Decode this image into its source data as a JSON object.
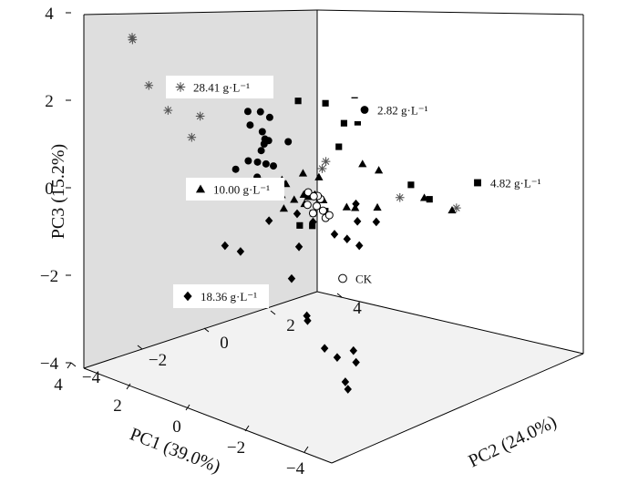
{
  "chart_data": {
    "type": "scatter",
    "projection": "3d",
    "xlabel": "PC1 (39.0%)",
    "ylabel": "PC2 (24.0%)",
    "zlabel": "PC3 (15.2%)",
    "xlim": [
      -4,
      4
    ],
    "ylim": [
      -4,
      4
    ],
    "zlim": [
      -4,
      4
    ],
    "x_ticks": [
      "−4",
      "−2",
      "0",
      "2",
      "4"
    ],
    "y_ticks": [
      "−4",
      "−2",
      "0",
      "2",
      "4"
    ],
    "z_ticks": [
      "−4",
      "−2",
      "0",
      "2",
      "4"
    ],
    "grid": false,
    "series": [
      {
        "name": "28.41 g·L⁻¹",
        "marker": "asterisk",
        "points": [
          [
            2.5,
            -3.5,
            3.7
          ],
          [
            2.6,
            -3.4,
            3.6
          ],
          [
            2.5,
            -3.0,
            2.5
          ],
          [
            2.3,
            -2.6,
            1.9
          ],
          [
            2.0,
            -1.9,
            1.7
          ],
          [
            2.4,
            -1.8,
            1.1
          ],
          [
            1.7,
            1.5,
            -0.1
          ],
          [
            1.8,
            1.7,
            0.0
          ],
          [
            0.2,
            2.5,
            -0.6
          ],
          [
            -0.7,
            3.4,
            -0.8
          ]
        ]
      },
      {
        "name": "2.82 g·L⁻¹",
        "marker": "filled-circle",
        "points": [
          [
            2.3,
            -0.2,
            1.4
          ],
          [
            2.1,
            0.0,
            1.4
          ],
          [
            1.9,
            0.1,
            1.3
          ],
          [
            2.0,
            -0.4,
            1.2
          ],
          [
            1.7,
            -0.3,
            1.1
          ],
          [
            1.5,
            -0.4,
            1.0
          ],
          [
            1.6,
            -0.2,
            0.9
          ],
          [
            1.4,
            -0.6,
            0.8
          ],
          [
            1.3,
            -0.8,
            0.6
          ],
          [
            1.1,
            -0.5,
            0.5
          ],
          [
            1.2,
            -0.9,
            0.3
          ],
          [
            1.0,
            -0.7,
            0.2
          ],
          [
            1.5,
            0.3,
            0.8
          ],
          [
            2.2,
            0.2,
            0.6
          ],
          [
            1.8,
            -0.1,
            0.3
          ],
          [
            1.4,
            -0.6,
            0.1
          ],
          [
            1.5,
            -0.9,
            0.6
          ],
          [
            1.7,
            -1.1,
            0.4
          ]
        ]
      },
      {
        "name": "4.82 g·L⁻¹",
        "marker": "filled-square",
        "points": [
          [
            2.4,
            1.4,
            1.3
          ],
          [
            2.6,
            2.4,
            1.0
          ],
          [
            2.2,
            2.6,
            0.6
          ],
          [
            1.7,
            2.0,
            0.3
          ],
          [
            2.3,
            3.1,
            0.5
          ],
          [
            3.3,
            3.9,
            0.6
          ],
          [
            0.5,
            3.1,
            -0.5
          ],
          [
            -0.8,
            2.5,
            -0.4
          ],
          [
            0.1,
            -0.6,
            -0.6
          ],
          [
            -0.1,
            -0.4,
            -0.6
          ],
          [
            -0.2,
            -0.1,
            -0.3
          ],
          [
            0.1,
            -0.2,
            -0.4
          ]
        ]
      },
      {
        "name": "10.00 g·L⁻¹",
        "marker": "filled-triangle",
        "points": [
          [
            0.8,
            -0.9,
            0.1
          ],
          [
            0.6,
            -0.7,
            0.0
          ],
          [
            0.4,
            -0.5,
            -0.1
          ],
          [
            0.3,
            -0.3,
            0.0
          ],
          [
            0.5,
            -0.1,
            -0.3
          ],
          [
            0.1,
            0.0,
            -0.1
          ],
          [
            0.2,
            0.2,
            -0.2
          ],
          [
            0.9,
            -0.3,
            0.1
          ],
          [
            0.7,
            -0.6,
            0.3
          ],
          [
            1.0,
            0.3,
            0.2
          ],
          [
            0.8,
            0.6,
            0.1
          ],
          [
            0.2,
            0.9,
            -0.5
          ],
          [
            -0.2,
            0.8,
            -0.4
          ],
          [
            -0.5,
            1.2,
            -0.4
          ],
          [
            0.9,
            2.0,
            0.1
          ],
          [
            0.8,
            2.4,
            -0.1
          ],
          [
            -0.4,
            2.7,
            -0.5
          ],
          [
            -1.0,
            3.0,
            -0.7
          ],
          [
            0.3,
            -0.9,
            -0.2
          ],
          [
            0.6,
            0.1,
            -0.2
          ]
        ]
      },
      {
        "name": "18.36 g·L⁻¹",
        "marker": "filled-diamond",
        "points": [
          [
            1.5,
            -1.6,
            -1.2
          ],
          [
            1.2,
            -1.4,
            -1.3
          ],
          [
            0.8,
            -0.9,
            -0.6
          ],
          [
            0.3,
            -0.5,
            -0.4
          ],
          [
            0.1,
            -0.2,
            -0.6
          ],
          [
            -0.4,
            0.0,
            -0.8
          ],
          [
            -0.6,
            0.2,
            -0.9
          ],
          [
            -0.9,
            0.3,
            -1.0
          ],
          [
            -0.5,
            0.6,
            -0.6
          ],
          [
            -0.8,
            0.9,
            -0.6
          ],
          [
            0.0,
            1.0,
            -0.4
          ],
          [
            0.6,
            0.3,
            -0.2
          ],
          [
            -0.1,
            -0.8,
            -1.0
          ],
          [
            -0.3,
            -1.2,
            -1.6
          ],
          [
            -1.4,
            -1.7,
            -2.2
          ],
          [
            -1.6,
            -1.9,
            -2.0
          ],
          [
            -2.2,
            -1.9,
            -2.6
          ],
          [
            -2.4,
            -1.7,
            -2.8
          ],
          [
            -2.5,
            -1.3,
            -2.7
          ],
          [
            -2.9,
            -1.9,
            -3.2
          ],
          [
            -3.1,
            -2.0,
            -3.3
          ],
          [
            -2.7,
            -1.4,
            -2.9
          ]
        ]
      },
      {
        "name": "CK",
        "marker": "open-circle",
        "points": [
          [
            0.6,
            0.1,
            -0.1
          ],
          [
            0.4,
            -0.1,
            -0.3
          ],
          [
            0.2,
            0.0,
            -0.3
          ],
          [
            0.3,
            0.2,
            -0.2
          ],
          [
            0.1,
            0.1,
            -0.4
          ],
          [
            -0.1,
            0.0,
            -0.5
          ],
          [
            0.0,
            0.2,
            -0.5
          ],
          [
            0.5,
            0.3,
            -0.2
          ],
          [
            0.1,
            -0.2,
            -0.4
          ],
          [
            0.3,
            0.0,
            -0.1
          ]
        ]
      }
    ]
  }
}
